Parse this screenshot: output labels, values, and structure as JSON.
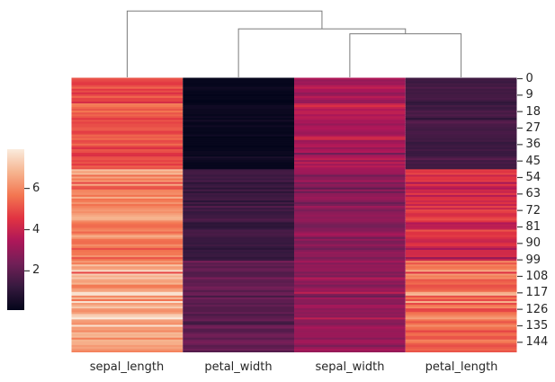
{
  "figure": {
    "kind": "seaborn clustermap (column-clustered heatmap)",
    "background_color": "#ffffff",
    "text_color": "#262626",
    "tick_color": "#3c3c3c"
  },
  "chart_data": {
    "type": "heatmap",
    "title": "",
    "columns": [
      "sepal_length",
      "petal_width",
      "sepal_width",
      "petal_length"
    ],
    "n_rows": 150,
    "row_ticks": [
      0,
      9,
      18,
      27,
      36,
      45,
      54,
      63,
      72,
      81,
      90,
      99,
      108,
      117,
      126,
      135,
      144
    ],
    "vmin": 0.1,
    "vmax": 7.9,
    "colormap_name": "rocket",
    "colormap_stops": [
      {
        "t": 0.0,
        "color": "#03051A"
      },
      {
        "t": 0.143,
        "color": "#35193E"
      },
      {
        "t": 0.286,
        "color": "#701F57"
      },
      {
        "t": 0.429,
        "color": "#AD1759"
      },
      {
        "t": 0.571,
        "color": "#E13342"
      },
      {
        "t": 0.714,
        "color": "#F37651"
      },
      {
        "t": 0.857,
        "color": "#F6B48F"
      },
      {
        "t": 1.0,
        "color": "#FAEBDD"
      }
    ],
    "colorbar": {
      "orientation": "vertical",
      "position": "left",
      "ticks": [
        6,
        4,
        2
      ],
      "tick_labels": [
        "6",
        "4",
        "2"
      ]
    },
    "dendrogram": {
      "orientation": "top",
      "line_color": "#7b7b7b",
      "leaf_order": [
        "sepal_length",
        "petal_width",
        "sepal_width",
        "petal_length"
      ],
      "links": [
        {
          "x1": 2.5,
          "h1": 0,
          "x2": 3.5,
          "h2": 0,
          "h": 0.59
        },
        {
          "x1": 1.5,
          "h1": 0,
          "x2": 3.0,
          "h2": 0.59,
          "h": 0.657
        },
        {
          "x1": 0.5,
          "h1": 0,
          "x2": 2.25,
          "h2": 0.657,
          "h": 0.9
        }
      ]
    },
    "rows": [
      [
        5.1,
        0.2,
        3.5,
        1.4
      ],
      [
        4.9,
        0.2,
        3.0,
        1.4
      ],
      [
        4.7,
        0.2,
        3.2,
        1.3
      ],
      [
        4.6,
        0.2,
        3.1,
        1.5
      ],
      [
        5.0,
        0.2,
        3.6,
        1.4
      ],
      [
        5.4,
        0.4,
        3.9,
        1.7
      ],
      [
        4.6,
        0.3,
        3.4,
        1.4
      ],
      [
        5.0,
        0.2,
        3.4,
        1.5
      ],
      [
        4.4,
        0.2,
        2.9,
        1.4
      ],
      [
        4.9,
        0.1,
        3.1,
        1.5
      ],
      [
        5.4,
        0.2,
        3.7,
        1.5
      ],
      [
        4.8,
        0.2,
        3.4,
        1.6
      ],
      [
        4.8,
        0.1,
        3.0,
        1.4
      ],
      [
        4.3,
        0.1,
        3.0,
        1.1
      ],
      [
        5.8,
        0.2,
        4.0,
        1.2
      ],
      [
        5.7,
        0.4,
        4.4,
        1.5
      ],
      [
        5.4,
        0.4,
        3.9,
        1.3
      ],
      [
        5.1,
        0.3,
        3.5,
        1.4
      ],
      [
        5.7,
        0.3,
        3.8,
        1.7
      ],
      [
        5.1,
        0.3,
        3.8,
        1.5
      ],
      [
        5.4,
        0.2,
        3.4,
        1.7
      ],
      [
        5.1,
        0.4,
        3.7,
        1.5
      ],
      [
        4.6,
        0.2,
        3.6,
        1.0
      ],
      [
        5.1,
        0.5,
        3.3,
        1.7
      ],
      [
        4.8,
        0.2,
        3.4,
        1.9
      ],
      [
        5.0,
        0.2,
        3.0,
        1.6
      ],
      [
        5.0,
        0.4,
        3.4,
        1.6
      ],
      [
        5.2,
        0.2,
        3.5,
        1.5
      ],
      [
        5.2,
        0.2,
        3.4,
        1.4
      ],
      [
        4.7,
        0.2,
        3.2,
        1.6
      ],
      [
        4.8,
        0.2,
        3.1,
        1.6
      ],
      [
        5.4,
        0.4,
        3.4,
        1.5
      ],
      [
        5.2,
        0.1,
        4.1,
        1.5
      ],
      [
        5.5,
        0.2,
        4.2,
        1.4
      ],
      [
        4.9,
        0.2,
        3.1,
        1.5
      ],
      [
        5.0,
        0.2,
        3.2,
        1.2
      ],
      [
        5.5,
        0.2,
        3.5,
        1.3
      ],
      [
        4.9,
        0.1,
        3.6,
        1.4
      ],
      [
        4.4,
        0.2,
        3.0,
        1.3
      ],
      [
        5.1,
        0.2,
        3.4,
        1.5
      ],
      [
        5.0,
        0.3,
        3.5,
        1.3
      ],
      [
        4.5,
        0.3,
        2.3,
        1.3
      ],
      [
        4.4,
        0.2,
        3.2,
        1.3
      ],
      [
        5.0,
        0.6,
        3.5,
        1.6
      ],
      [
        5.1,
        0.4,
        3.8,
        1.9
      ],
      [
        4.8,
        0.3,
        3.0,
        1.4
      ],
      [
        5.1,
        0.2,
        3.8,
        1.6
      ],
      [
        4.6,
        0.2,
        3.2,
        1.4
      ],
      [
        5.3,
        0.2,
        3.7,
        1.5
      ],
      [
        5.0,
        0.2,
        3.3,
        1.4
      ],
      [
        7.0,
        1.4,
        3.2,
        4.7
      ],
      [
        6.4,
        1.5,
        3.2,
        4.5
      ],
      [
        6.9,
        1.5,
        3.1,
        4.9
      ],
      [
        5.5,
        1.3,
        2.3,
        4.0
      ],
      [
        6.5,
        1.5,
        2.8,
        4.6
      ],
      [
        5.7,
        1.3,
        2.8,
        4.5
      ],
      [
        6.3,
        1.6,
        3.3,
        4.7
      ],
      [
        4.9,
        1.0,
        2.4,
        3.3
      ],
      [
        6.6,
        1.3,
        2.9,
        4.6
      ],
      [
        5.2,
        1.4,
        2.7,
        3.9
      ],
      [
        5.0,
        1.0,
        2.0,
        3.5
      ],
      [
        5.9,
        1.5,
        3.0,
        4.2
      ],
      [
        6.0,
        1.0,
        2.2,
        4.0
      ],
      [
        6.1,
        1.4,
        2.9,
        4.7
      ],
      [
        5.6,
        1.3,
        2.9,
        3.6
      ],
      [
        6.7,
        1.4,
        3.1,
        4.4
      ],
      [
        5.6,
        1.5,
        3.0,
        4.5
      ],
      [
        5.8,
        1.0,
        2.7,
        4.1
      ],
      [
        6.2,
        1.5,
        2.2,
        4.5
      ],
      [
        5.6,
        1.1,
        2.5,
        3.9
      ],
      [
        5.9,
        1.8,
        3.2,
        4.8
      ],
      [
        6.1,
        1.3,
        2.8,
        4.0
      ],
      [
        6.3,
        1.5,
        2.5,
        4.9
      ],
      [
        6.1,
        1.2,
        2.8,
        4.7
      ],
      [
        6.4,
        1.3,
        2.9,
        4.3
      ],
      [
        6.6,
        1.4,
        3.0,
        4.4
      ],
      [
        6.8,
        1.4,
        2.8,
        4.8
      ],
      [
        6.7,
        1.7,
        3.0,
        5.0
      ],
      [
        6.0,
        1.5,
        2.9,
        4.5
      ],
      [
        5.7,
        1.0,
        2.6,
        3.5
      ],
      [
        5.5,
        1.1,
        2.4,
        3.8
      ],
      [
        5.5,
        1.0,
        2.4,
        3.7
      ],
      [
        5.8,
        1.2,
        2.7,
        3.9
      ],
      [
        6.0,
        1.6,
        2.7,
        5.1
      ],
      [
        5.4,
        1.5,
        3.0,
        4.5
      ],
      [
        6.0,
        1.6,
        3.4,
        4.5
      ],
      [
        6.7,
        1.5,
        3.1,
        4.7
      ],
      [
        6.3,
        1.3,
        2.3,
        4.4
      ],
      [
        5.6,
        1.3,
        3.0,
        4.1
      ],
      [
        5.5,
        1.3,
        2.5,
        4.0
      ],
      [
        5.5,
        1.2,
        2.6,
        4.4
      ],
      [
        6.1,
        1.4,
        3.0,
        4.6
      ],
      [
        5.8,
        1.2,
        2.6,
        4.0
      ],
      [
        5.0,
        1.0,
        2.3,
        3.3
      ],
      [
        5.6,
        1.3,
        2.7,
        4.2
      ],
      [
        5.7,
        1.2,
        3.0,
        4.2
      ],
      [
        5.7,
        1.3,
        2.9,
        4.2
      ],
      [
        6.2,
        1.3,
        2.9,
        4.3
      ],
      [
        5.1,
        1.1,
        2.5,
        3.0
      ],
      [
        5.7,
        1.3,
        2.8,
        4.1
      ],
      [
        6.3,
        2.5,
        3.3,
        6.0
      ],
      [
        5.8,
        1.9,
        2.7,
        5.1
      ],
      [
        7.1,
        2.1,
        3.0,
        5.9
      ],
      [
        6.3,
        1.8,
        2.9,
        5.6
      ],
      [
        6.5,
        2.2,
        3.0,
        5.8
      ],
      [
        7.6,
        2.1,
        3.0,
        6.6
      ],
      [
        4.9,
        1.7,
        2.5,
        4.5
      ],
      [
        7.3,
        1.8,
        2.9,
        6.3
      ],
      [
        6.7,
        1.8,
        2.5,
        5.8
      ],
      [
        7.2,
        2.5,
        3.6,
        6.1
      ],
      [
        6.5,
        2.0,
        3.2,
        5.1
      ],
      [
        6.4,
        1.9,
        2.7,
        5.3
      ],
      [
        6.8,
        2.1,
        3.0,
        5.5
      ],
      [
        5.7,
        2.0,
        2.5,
        5.0
      ],
      [
        5.8,
        2.4,
        2.8,
        5.1
      ],
      [
        6.4,
        2.3,
        3.2,
        5.3
      ],
      [
        6.5,
        1.8,
        3.0,
        5.5
      ],
      [
        7.7,
        2.2,
        3.8,
        6.7
      ],
      [
        7.7,
        2.3,
        2.6,
        6.9
      ],
      [
        6.0,
        1.5,
        2.2,
        5.0
      ],
      [
        6.9,
        2.3,
        3.2,
        5.7
      ],
      [
        5.6,
        2.0,
        2.8,
        4.9
      ],
      [
        7.7,
        2.0,
        2.8,
        6.7
      ],
      [
        6.3,
        1.8,
        2.7,
        4.9
      ],
      [
        6.7,
        2.1,
        3.3,
        5.7
      ],
      [
        7.2,
        1.8,
        3.2,
        6.0
      ],
      [
        6.2,
        1.8,
        2.8,
        4.8
      ],
      [
        6.1,
        1.8,
        3.0,
        4.9
      ],
      [
        6.4,
        2.1,
        2.8,
        5.6
      ],
      [
        7.2,
        1.6,
        3.0,
        5.8
      ],
      [
        7.4,
        1.9,
        2.8,
        6.1
      ],
      [
        7.9,
        2.0,
        3.8,
        6.4
      ],
      [
        6.4,
        2.2,
        2.8,
        5.6
      ],
      [
        6.3,
        1.5,
        2.8,
        5.1
      ],
      [
        6.1,
        1.4,
        2.6,
        5.6
      ],
      [
        7.7,
        2.3,
        3.0,
        6.1
      ],
      [
        6.3,
        2.4,
        3.4,
        5.6
      ],
      [
        6.4,
        1.8,
        3.1,
        5.5
      ],
      [
        6.0,
        1.8,
        3.0,
        4.8
      ],
      [
        6.9,
        2.1,
        3.1,
        5.4
      ],
      [
        6.7,
        2.4,
        3.1,
        5.6
      ],
      [
        6.9,
        2.3,
        3.1,
        5.1
      ],
      [
        5.8,
        1.9,
        2.7,
        5.1
      ],
      [
        6.8,
        2.3,
        3.2,
        5.9
      ],
      [
        6.7,
        2.5,
        3.3,
        5.7
      ],
      [
        6.7,
        2.3,
        3.0,
        5.2
      ],
      [
        6.3,
        1.9,
        2.5,
        5.0
      ],
      [
        6.5,
        2.0,
        3.0,
        5.2
      ],
      [
        6.2,
        2.3,
        3.4,
        5.4
      ],
      [
        5.9,
        1.8,
        3.0,
        5.1
      ]
    ]
  }
}
